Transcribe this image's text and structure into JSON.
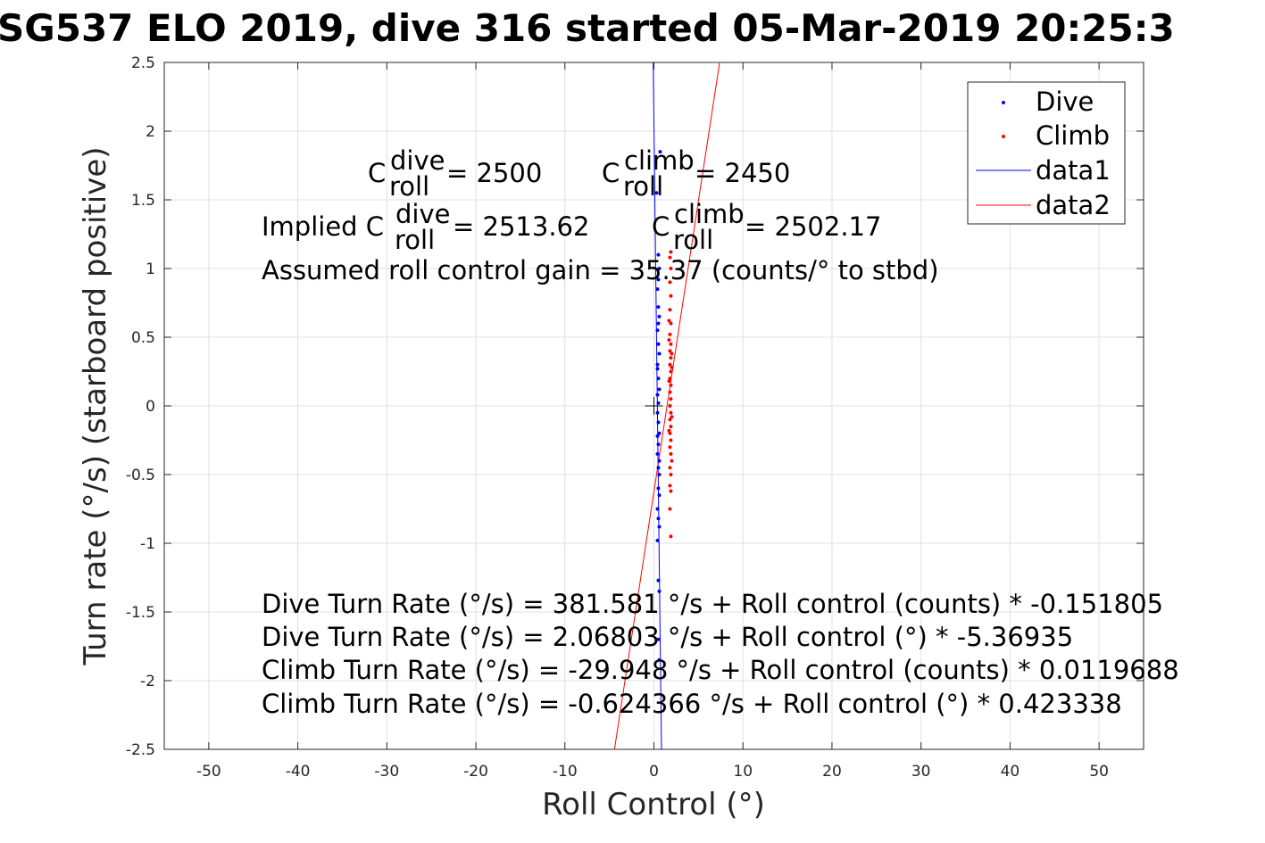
{
  "chart_data": {
    "type": "scatter",
    "title": "SG537 ELO 2019, dive 316 started 05-Mar-2019 20:25:3",
    "xlabel": "Roll Control (°)",
    "ylabel": "Turn rate (°/s) (starboard positive)",
    "xlim": [
      -55,
      55
    ],
    "ylim": [
      -2.5,
      2.5
    ],
    "xticks": [
      -50,
      -40,
      -30,
      -20,
      -10,
      0,
      10,
      20,
      30,
      40,
      50
    ],
    "yticks": [
      -2.5,
      -2,
      -1.5,
      -1,
      -0.5,
      0,
      0.5,
      1,
      1.5,
      2,
      2.5
    ],
    "grid": true,
    "legend_position": "top-right",
    "legend": [
      {
        "label": "Dive",
        "kind": "marker",
        "color": "#0000ff"
      },
      {
        "label": "Climb",
        "kind": "marker",
        "color": "#ff0000"
      },
      {
        "label": "data1",
        "kind": "line",
        "color": "#0000ff"
      },
      {
        "label": "data2",
        "kind": "line",
        "color": "#ff0000"
      }
    ],
    "series": [
      {
        "name": "Dive",
        "color": "#0000ff",
        "points": [
          [
            0.5,
            1.1
          ],
          [
            0.6,
            1.0
          ],
          [
            0.4,
            0.85
          ],
          [
            0.5,
            0.72
          ],
          [
            0.6,
            0.65
          ],
          [
            0.4,
            0.55
          ],
          [
            0.5,
            0.45
          ],
          [
            0.6,
            0.38
          ],
          [
            0.4,
            0.3
          ],
          [
            0.5,
            0.2
          ],
          [
            0.6,
            0.12
          ],
          [
            0.4,
            0.08
          ],
          [
            0.5,
            0.02
          ],
          [
            0.4,
            -0.05
          ],
          [
            0.5,
            -0.12
          ],
          [
            0.6,
            -0.2
          ],
          [
            0.5,
            -0.28
          ],
          [
            0.4,
            -0.35
          ],
          [
            0.5,
            -0.45
          ],
          [
            0.6,
            -0.5
          ],
          [
            0.5,
            -0.6
          ],
          [
            0.4,
            -0.75
          ],
          [
            0.5,
            -0.82
          ],
          [
            0.6,
            -0.88
          ],
          [
            0.4,
            -0.98
          ],
          [
            0.5,
            -1.27
          ],
          [
            0.6,
            -1.35
          ],
          [
            0.5,
            -1.7
          ],
          [
            0.6,
            -1.85
          ],
          [
            0.3,
            1.55
          ],
          [
            0.7,
            1.85
          ],
          [
            0.4,
            -0.22
          ],
          [
            0.5,
            0.6
          ],
          [
            0.6,
            -0.65
          ],
          [
            0.5,
            0.92
          ],
          [
            0.4,
            0.27
          ],
          [
            0.6,
            -0.4
          ]
        ]
      },
      {
        "name": "Climb",
        "color": "#ff0000",
        "points": [
          [
            1.9,
            1.12
          ],
          [
            1.8,
            1.08
          ],
          [
            1.9,
            1.0
          ],
          [
            1.8,
            0.9
          ],
          [
            1.9,
            0.8
          ],
          [
            1.8,
            0.7
          ],
          [
            1.9,
            0.6
          ],
          [
            1.8,
            0.52
          ],
          [
            1.9,
            0.45
          ],
          [
            1.8,
            0.4
          ],
          [
            1.9,
            0.35
          ],
          [
            1.8,
            0.3
          ],
          [
            1.9,
            0.25
          ],
          [
            1.8,
            0.2
          ],
          [
            1.9,
            0.15
          ],
          [
            1.8,
            0.1
          ],
          [
            1.9,
            0.05
          ],
          [
            1.8,
            0.0
          ],
          [
            1.9,
            -0.05
          ],
          [
            1.8,
            -0.1
          ],
          [
            1.9,
            -0.15
          ],
          [
            1.8,
            -0.2
          ],
          [
            1.9,
            -0.25
          ],
          [
            1.8,
            -0.3
          ],
          [
            1.9,
            -0.35
          ],
          [
            1.8,
            -0.45
          ],
          [
            1.9,
            -0.5
          ],
          [
            1.8,
            -0.58
          ],
          [
            1.9,
            -0.62
          ],
          [
            1.8,
            -0.75
          ],
          [
            1.9,
            -0.95
          ],
          [
            2.0,
            0.38
          ],
          [
            1.7,
            0.18
          ],
          [
            2.0,
            -0.08
          ],
          [
            1.7,
            -0.18
          ],
          [
            2.0,
            0.28
          ],
          [
            1.7,
            0.48
          ],
          [
            2.0,
            -0.4
          ],
          [
            1.7,
            0.62
          ]
        ]
      }
    ],
    "fit_lines": [
      {
        "name": "data1",
        "color": "#0000ff",
        "intercept": 2.06803,
        "slope": -5.36935
      },
      {
        "name": "data2",
        "color": "#ff0000",
        "intercept": -0.624366,
        "slope": 0.423338
      }
    ],
    "origin_marker": [
      0,
      0
    ],
    "annotations": {
      "c_dive_base": "C",
      "c_dive_sup": "dive",
      "c_dive_sub": "roll",
      "c_dive_value": "= 2500",
      "c_climb_base": "C",
      "c_climb_sup": "climb",
      "c_climb_sub": "roll",
      "c_climb_value": "= 2450",
      "implied_prefix": "Implied C",
      "implied_dive_sup": "dive",
      "implied_dive_sub": "roll",
      "implied_dive_value": "= 2513.62",
      "implied_climb_base": "C",
      "implied_climb_sup": "climb",
      "implied_climb_sub": "roll",
      "implied_climb_value": "= 2502.17",
      "gain": "Assumed roll control gain = 35.37 (counts/° to stbd)",
      "eq1": "Dive Turn Rate (°/s) = 381.581 °/s + Roll control (counts) * -0.151805",
      "eq2": "Dive Turn Rate (°/s) = 2.06803 °/s + Roll control (°) * -5.36935",
      "eq3": "Climb Turn Rate (°/s) = -29.948 °/s + Roll control (counts) * 0.0119688",
      "eq4": "Climb Turn Rate (°/s) = -0.624366 °/s + Roll control (°) * 0.423338"
    }
  }
}
